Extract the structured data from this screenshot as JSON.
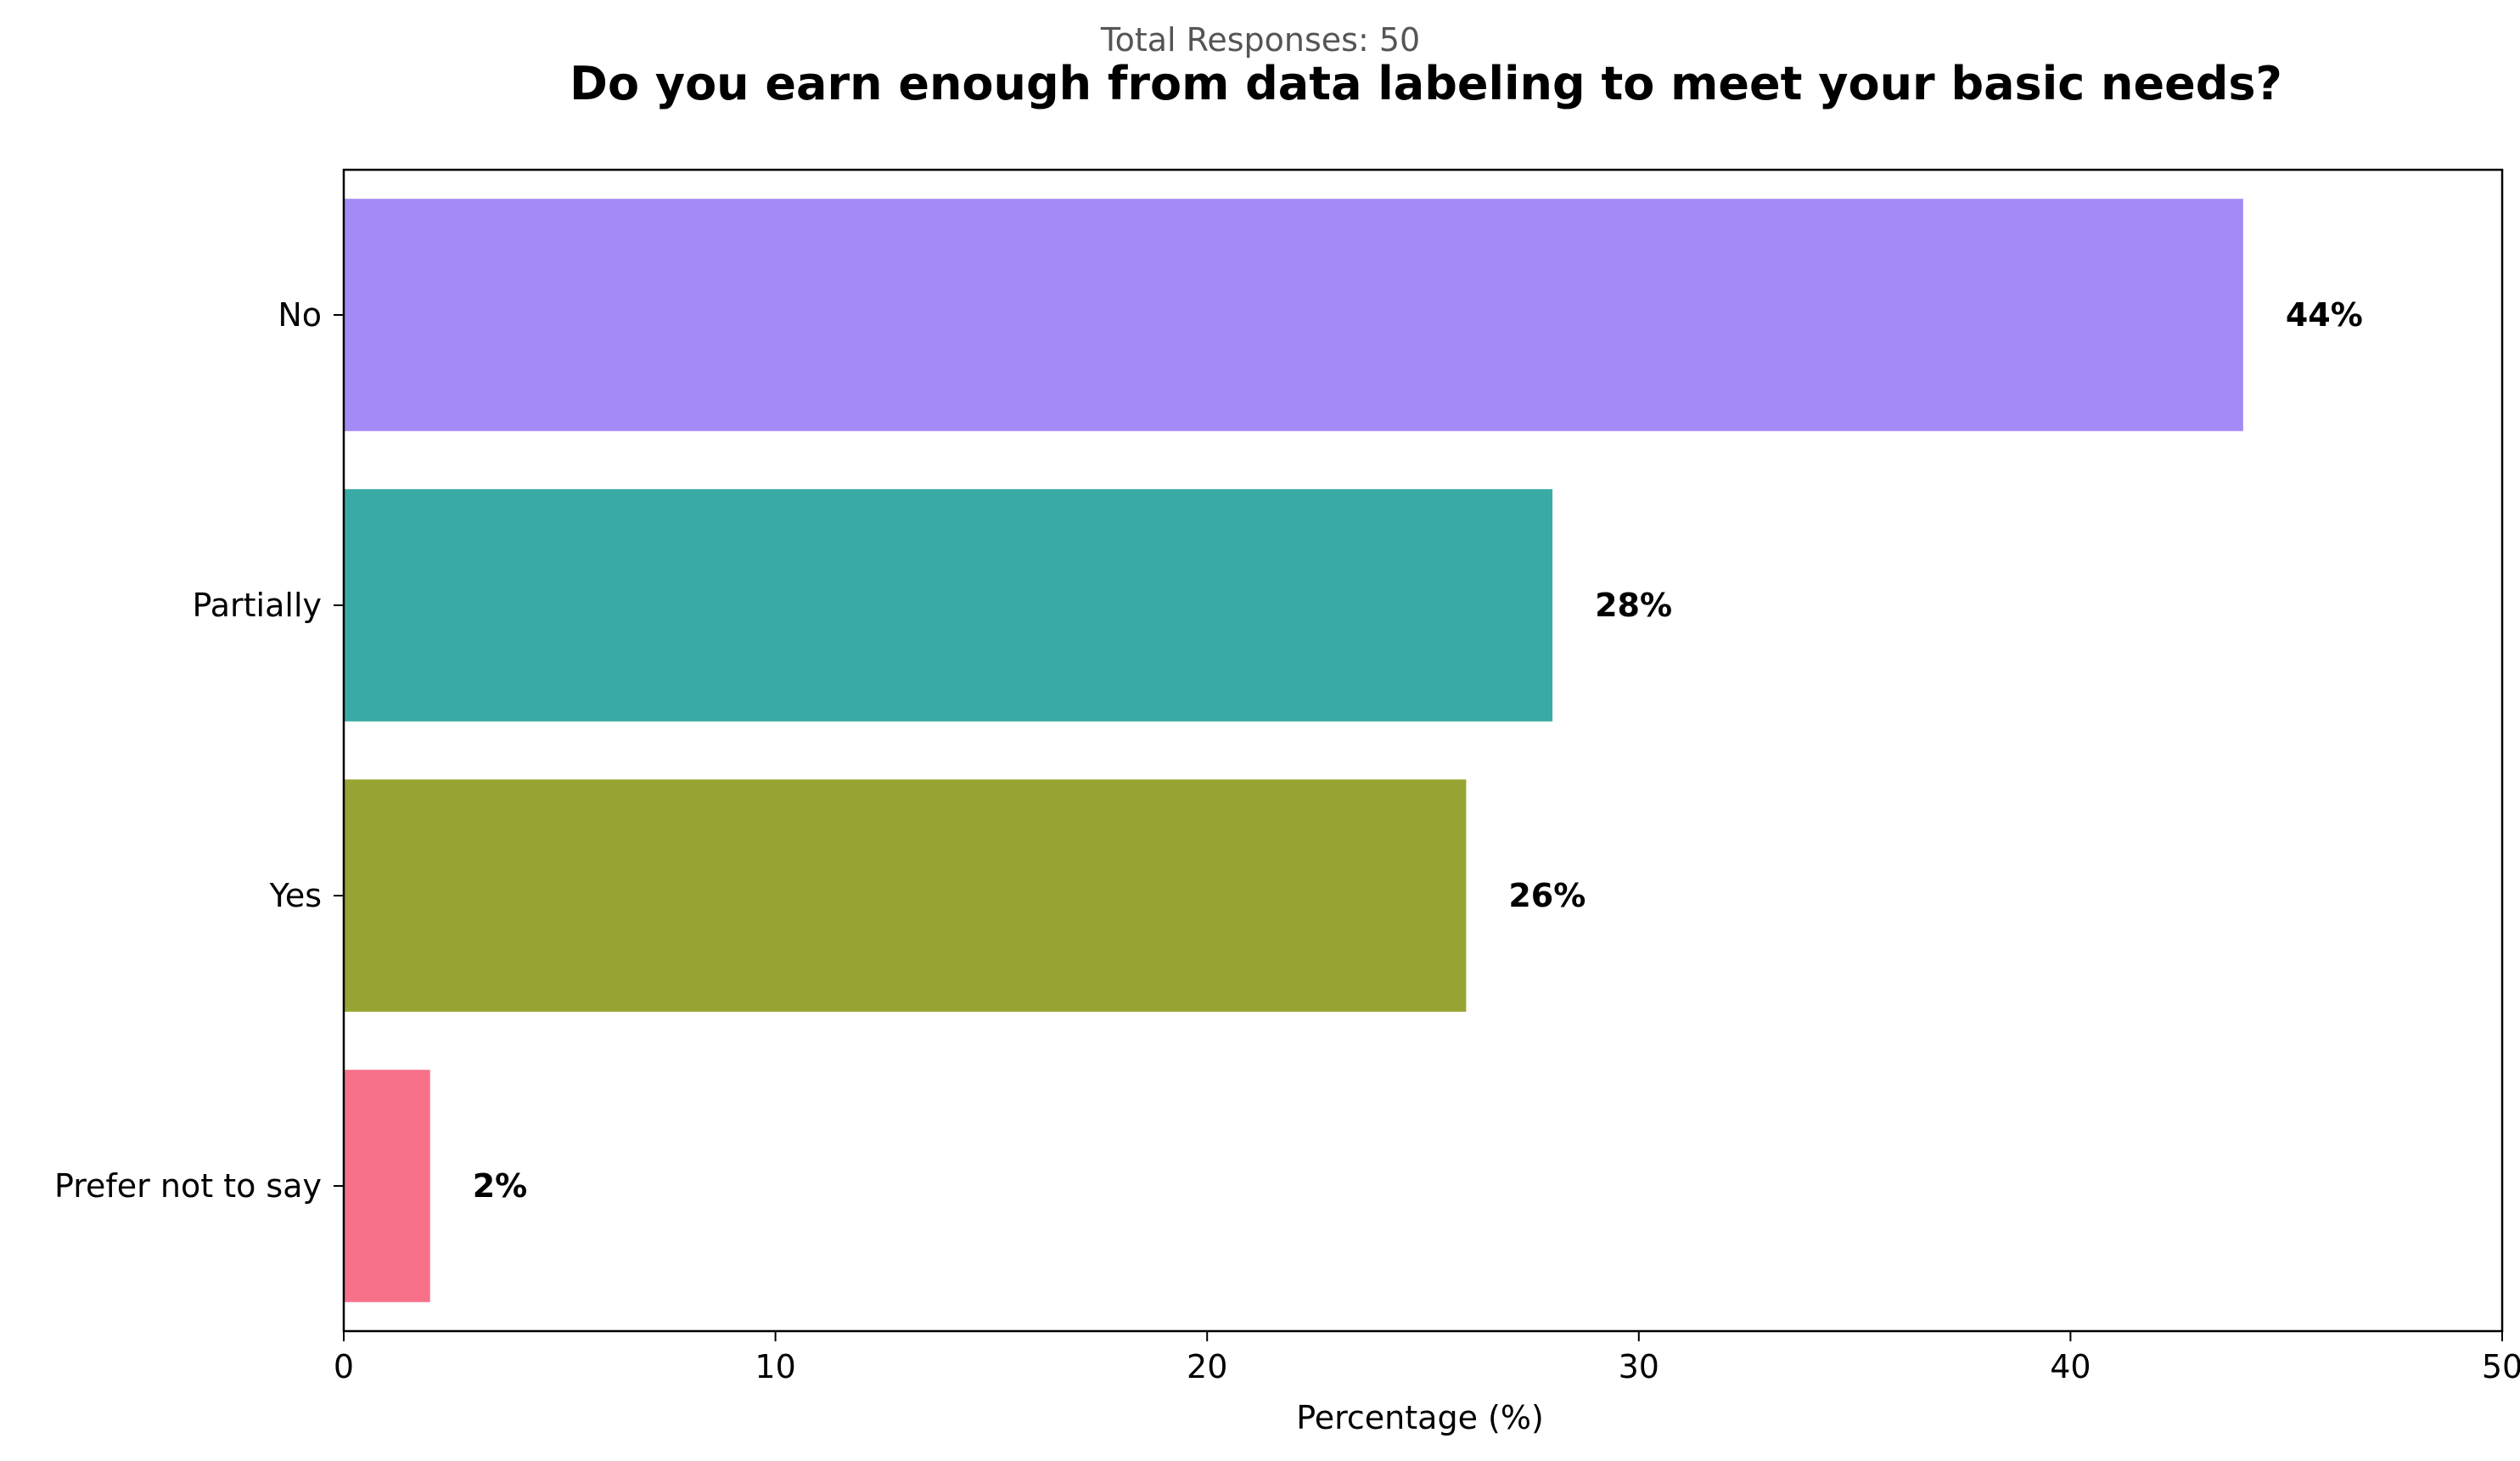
{
  "chart_data": {
    "type": "bar",
    "orientation": "horizontal",
    "title": "Do you earn enough from data labeling to meet your basic needs?",
    "subtitle": "Total Responses: 50",
    "xlabel": "Percentage (%)",
    "ylabel": "",
    "xlim": [
      0,
      50
    ],
    "xticks": [
      0,
      10,
      20,
      30,
      40,
      50
    ],
    "categories": [
      "No",
      "Partially",
      "Yes",
      "Prefer not to say"
    ],
    "values": [
      44,
      28,
      26,
      2
    ],
    "data_labels": [
      "44%",
      "28%",
      "26%",
      "2%"
    ],
    "colors": [
      "#a48af4",
      "#39aba4",
      "#97a433",
      "#f7718a"
    ],
    "grid": false,
    "legend": "none"
  }
}
